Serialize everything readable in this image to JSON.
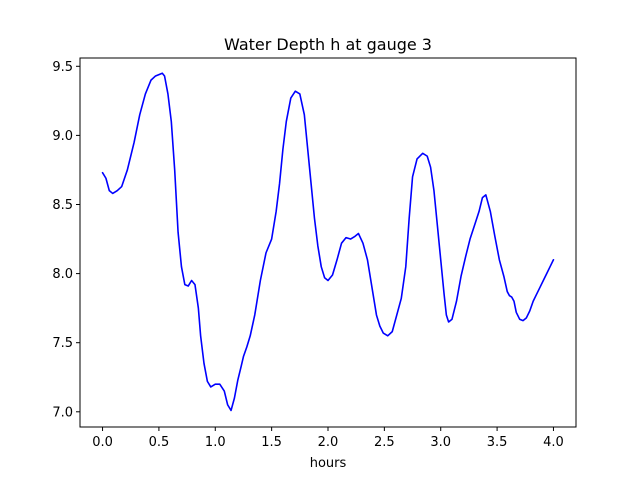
{
  "chart_data": {
    "type": "line",
    "title": "Water Depth h at gauge 3",
    "xlabel": "hours",
    "ylabel": "",
    "xlim": [
      -0.2,
      4.2
    ],
    "ylim": [
      6.89,
      9.56
    ],
    "xticks": [
      0.0,
      0.5,
      1.0,
      1.5,
      2.0,
      2.5,
      3.0,
      3.5,
      4.0
    ],
    "xtick_labels": [
      "0.0",
      "0.5",
      "1.0",
      "1.5",
      "2.0",
      "2.5",
      "3.0",
      "3.5",
      "4.0"
    ],
    "yticks": [
      7.0,
      7.5,
      8.0,
      8.5,
      9.0,
      9.5
    ],
    "ytick_labels": [
      "7.0",
      "7.5",
      "8.0",
      "8.5",
      "9.0",
      "9.5"
    ],
    "grid": false,
    "series": [
      {
        "color": "#0000ff",
        "x": [
          0.0,
          0.03,
          0.06,
          0.09,
          0.13,
          0.17,
          0.22,
          0.28,
          0.33,
          0.38,
          0.43,
          0.47,
          0.5,
          0.53,
          0.55,
          0.58,
          0.61,
          0.64,
          0.67,
          0.7,
          0.73,
          0.76,
          0.79,
          0.82,
          0.85,
          0.87,
          0.9,
          0.93,
          0.96,
          1.0,
          1.04,
          1.08,
          1.11,
          1.14,
          1.17,
          1.2,
          1.23,
          1.25,
          1.28,
          1.31,
          1.35,
          1.4,
          1.45,
          1.5,
          1.54,
          1.57,
          1.6,
          1.63,
          1.67,
          1.71,
          1.75,
          1.79,
          1.82,
          1.85,
          1.88,
          1.91,
          1.94,
          1.97,
          2.0,
          2.04,
          2.08,
          2.12,
          2.16,
          2.2,
          2.24,
          2.27,
          2.31,
          2.35,
          2.38,
          2.41,
          2.43,
          2.46,
          2.49,
          2.53,
          2.57,
          2.61,
          2.65,
          2.69,
          2.72,
          2.75,
          2.79,
          2.84,
          2.88,
          2.91,
          2.94,
          2.97,
          3.0,
          3.03,
          3.05,
          3.07,
          3.1,
          3.14,
          3.18,
          3.22,
          3.26,
          3.3,
          3.34,
          3.37,
          3.4,
          3.44,
          3.48,
          3.52,
          3.56,
          3.59,
          3.61,
          3.63,
          3.65,
          3.67,
          3.7,
          3.73,
          3.76,
          3.79,
          3.82,
          3.85,
          3.88,
          3.91,
          3.94,
          3.97,
          4.0
        ],
        "y": [
          8.73,
          8.69,
          8.6,
          8.58,
          8.6,
          8.63,
          8.75,
          8.95,
          9.15,
          9.3,
          9.4,
          9.43,
          9.44,
          9.45,
          9.43,
          9.3,
          9.1,
          8.75,
          8.3,
          8.05,
          7.92,
          7.91,
          7.95,
          7.92,
          7.75,
          7.55,
          7.35,
          7.22,
          7.18,
          7.2,
          7.2,
          7.15,
          7.05,
          7.01,
          7.1,
          7.23,
          7.33,
          7.4,
          7.47,
          7.55,
          7.7,
          7.95,
          8.15,
          8.25,
          8.45,
          8.65,
          8.9,
          9.1,
          9.27,
          9.32,
          9.3,
          9.15,
          8.9,
          8.65,
          8.4,
          8.2,
          8.05,
          7.97,
          7.95,
          7.99,
          8.1,
          8.22,
          8.26,
          8.25,
          8.27,
          8.29,
          8.22,
          8.1,
          7.95,
          7.8,
          7.7,
          7.62,
          7.57,
          7.55,
          7.58,
          7.7,
          7.82,
          8.05,
          8.4,
          8.7,
          8.83,
          8.87,
          8.85,
          8.77,
          8.6,
          8.35,
          8.1,
          7.85,
          7.7,
          7.65,
          7.67,
          7.8,
          7.98,
          8.12,
          8.25,
          8.35,
          8.45,
          8.55,
          8.57,
          8.45,
          8.27,
          8.1,
          7.98,
          7.87,
          7.84,
          7.83,
          7.8,
          7.72,
          7.67,
          7.66,
          7.68,
          7.73,
          7.8,
          7.85,
          7.9,
          7.95,
          8.0,
          8.05,
          8.1
        ]
      }
    ]
  }
}
